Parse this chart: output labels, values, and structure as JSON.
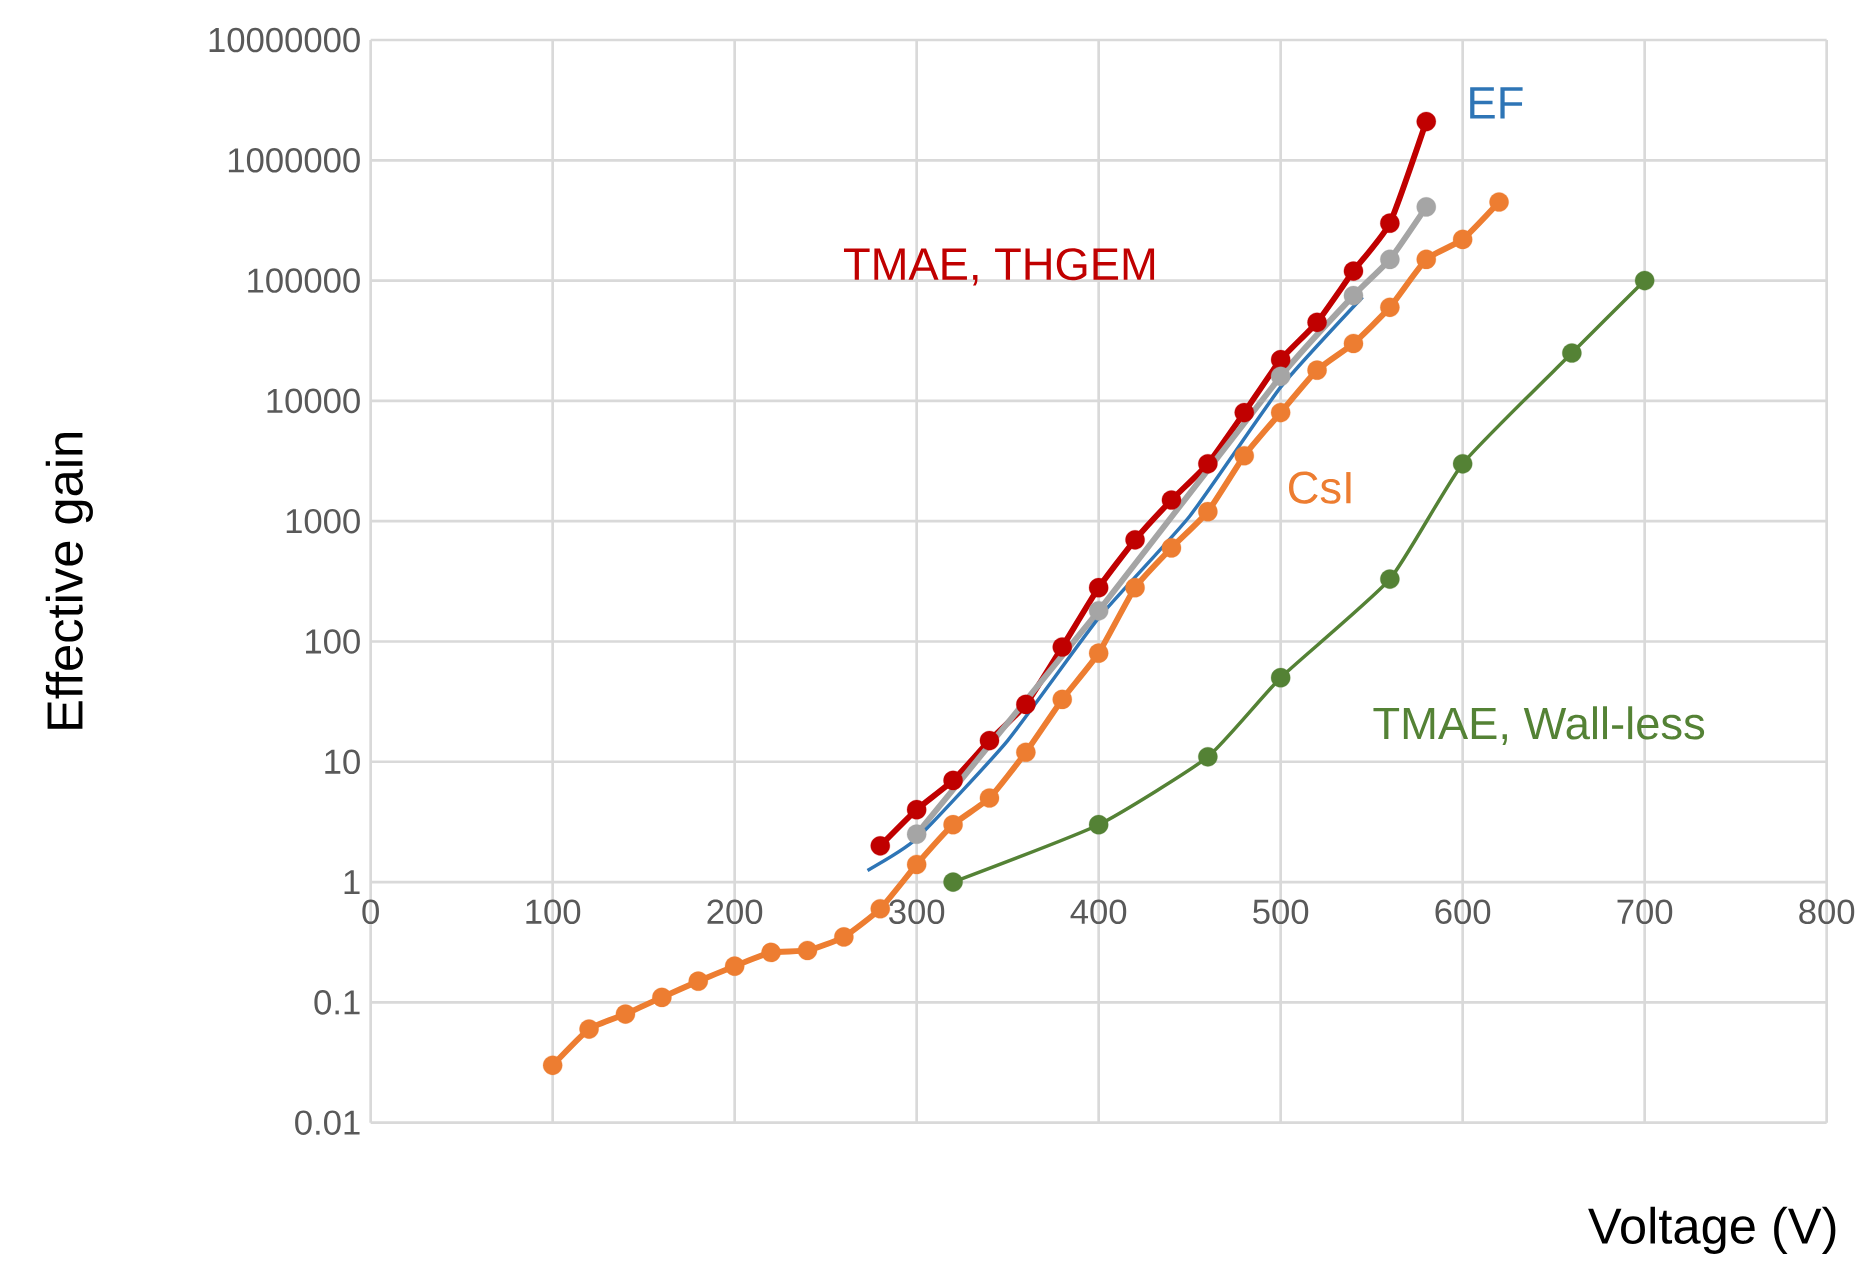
{
  "chart_data": {
    "type": "line",
    "xlabel": "Voltage (V)",
    "ylabel": "Effective gain",
    "series": [
      {
        "name": "TMAE, THGEM",
        "color": "#c00000",
        "x": [
          280,
          300,
          320,
          340,
          360,
          380,
          400,
          420,
          440,
          460,
          480,
          500,
          520,
          540,
          560,
          580
        ],
        "values": [
          2,
          4,
          7,
          15,
          30,
          90,
          280,
          700,
          1500,
          3000,
          8000,
          22000,
          45000,
          120000,
          300000,
          2100000
        ]
      },
      {
        "color": "#a5a5a5",
        "x": [
          300,
          400,
          500,
          540,
          560,
          580
        ],
        "values": [
          2.5,
          180,
          16000,
          75000,
          150000,
          410000
        ]
      },
      {
        "name": "EF",
        "color": "#2e75b6",
        "marker": "none",
        "x": [
          273,
          300,
          350,
          400,
          450,
          500,
          545
        ],
        "values": [
          1.25,
          2.3,
          15,
          157,
          1100,
          13000,
          73000
        ]
      },
      {
        "name": "CsI",
        "color": "#ed7d31",
        "x": [
          100,
          120,
          140,
          160,
          180,
          200,
          220,
          240,
          260,
          280,
          300,
          320,
          340,
          360,
          380,
          400,
          420,
          440,
          460,
          480,
          500,
          520,
          540,
          560,
          580,
          600,
          620
        ],
        "values": [
          0.03,
          0.06,
          0.08,
          0.11,
          0.15,
          0.2,
          0.26,
          0.27,
          0.35,
          0.6,
          1.4,
          3,
          5,
          12,
          33,
          80,
          280,
          600,
          1200,
          3500,
          8000,
          18000,
          30000,
          60000,
          150000,
          220000,
          450000
        ]
      },
      {
        "name": "TMAE, Wall-less",
        "color": "#548235",
        "x": [
          320,
          400,
          460,
          500,
          560,
          600,
          660,
          700
        ],
        "values": [
          1,
          3,
          11,
          50,
          330,
          3000,
          25000,
          100000
        ]
      }
    ],
    "xlim": [
      0,
      800
    ],
    "xticks": [
      0,
      100,
      200,
      300,
      400,
      500,
      600,
      700,
      800
    ],
    "ylim": [
      0.01,
      10000000
    ],
    "yticks": [
      0.01,
      0.1,
      1,
      10,
      100,
      1000,
      10000,
      100000,
      1000000,
      10000000
    ],
    "log": "y",
    "grid": true,
    "marker": "circle",
    "line_style": "solid"
  }
}
